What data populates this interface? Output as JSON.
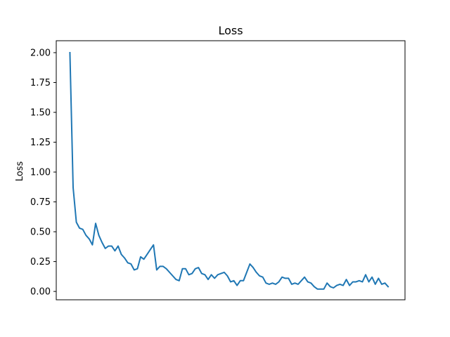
{
  "chart_data": {
    "type": "line",
    "title": "Loss",
    "xlabel": "",
    "ylabel": "Loss",
    "ylim": [
      -0.07,
      2.1
    ],
    "xlim": [
      -4.25,
      104.25
    ],
    "yticks": [
      0.0,
      0.25,
      0.5,
      0.75,
      1.0,
      1.25,
      1.5,
      1.75,
      2.0
    ],
    "ytick_labels": [
      "0.00",
      "0.25",
      "0.50",
      "0.75",
      "1.00",
      "1.25",
      "1.50",
      "1.75",
      "2.00"
    ],
    "xticks_visible": false,
    "grid": false,
    "line_color": "#1f77b4",
    "series": [
      {
        "name": "Loss",
        "values": [
          2.0,
          0.87,
          0.58,
          0.53,
          0.52,
          0.47,
          0.44,
          0.39,
          0.57,
          0.47,
          0.41,
          0.36,
          0.38,
          0.38,
          0.34,
          0.38,
          0.31,
          0.28,
          0.24,
          0.23,
          0.18,
          0.19,
          0.29,
          0.27,
          0.31,
          0.35,
          0.39,
          0.18,
          0.21,
          0.21,
          0.19,
          0.16,
          0.13,
          0.1,
          0.09,
          0.19,
          0.19,
          0.14,
          0.15,
          0.19,
          0.2,
          0.15,
          0.14,
          0.1,
          0.14,
          0.11,
          0.14,
          0.15,
          0.16,
          0.13,
          0.08,
          0.09,
          0.05,
          0.09,
          0.09,
          0.16,
          0.23,
          0.2,
          0.16,
          0.13,
          0.12,
          0.07,
          0.06,
          0.07,
          0.06,
          0.08,
          0.12,
          0.11,
          0.11,
          0.06,
          0.07,
          0.06,
          0.09,
          0.12,
          0.08,
          0.07,
          0.04,
          0.02,
          0.02,
          0.02,
          0.07,
          0.04,
          0.03,
          0.05,
          0.06,
          0.05,
          0.1,
          0.05,
          0.08,
          0.08,
          0.09,
          0.08,
          0.14,
          0.08,
          0.12,
          0.06,
          0.11,
          0.06,
          0.07,
          0.04
        ]
      }
    ]
  }
}
